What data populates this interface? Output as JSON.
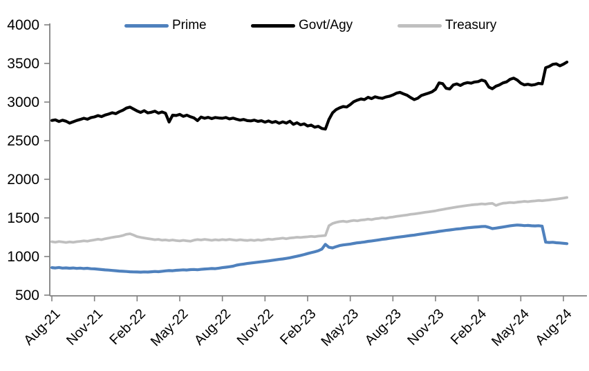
{
  "chart_data": {
    "type": "line",
    "title": "",
    "xlabel": "",
    "ylabel": "",
    "grid": false,
    "legend_position": "top",
    "axis_color": "#808080",
    "text_color": "#000000",
    "background_color": "#ffffff",
    "ylim": [
      500,
      4000
    ],
    "yticks": [
      500,
      1000,
      1500,
      2000,
      2500,
      3000,
      3500,
      4000
    ],
    "x_unit": "months since Aug-2021, weekly points",
    "x_start": 0,
    "x_step": 0.25,
    "xticks": {
      "positions_months": [
        0,
        3,
        6,
        9,
        12,
        15,
        18,
        21,
        24,
        27,
        30,
        33,
        36
      ],
      "labels": [
        "Aug-21",
        "Nov-21",
        "Feb-22",
        "May-22",
        "Aug-22",
        "Nov-22",
        "Feb-23",
        "May-23",
        "Aug-23",
        "Nov-23",
        "Feb-24",
        "May-24",
        "Aug-24"
      ]
    },
    "series": [
      {
        "name": "Prime",
        "color": "#4f81bd",
        "stroke_width": 4.2,
        "values": [
          856,
          852,
          858,
          850,
          853,
          848,
          852,
          846,
          850,
          845,
          848,
          842,
          840,
          836,
          831,
          827,
          824,
          820,
          816,
          812,
          809,
          806,
          803,
          801,
          800,
          798,
          801,
          799,
          803,
          806,
          804,
          809,
          814,
          818,
          816,
          821,
          824,
          828,
          825,
          830,
          832,
          829,
          834,
          838,
          841,
          845,
          843,
          849,
          856,
          862,
          868,
          875,
          888,
          896,
          903,
          910,
          916,
          921,
          927,
          932,
          938,
          944,
          950,
          957,
          963,
          969,
          976,
          984,
          994,
          1004,
          1014,
          1026,
          1038,
          1050,
          1062,
          1075,
          1096,
          1158,
          1120,
          1112,
          1128,
          1142,
          1150,
          1155,
          1162,
          1170,
          1178,
          1182,
          1188,
          1196,
          1202,
          1208,
          1215,
          1222,
          1228,
          1235,
          1242,
          1248,
          1254,
          1260,
          1266,
          1272,
          1278,
          1285,
          1292,
          1298,
          1305,
          1312,
          1318,
          1326,
          1332,
          1338,
          1344,
          1350,
          1356,
          1360,
          1366,
          1372,
          1376,
          1380,
          1384,
          1388,
          1390,
          1378,
          1362,
          1368,
          1375,
          1382,
          1390,
          1398,
          1404,
          1408,
          1405,
          1400,
          1403,
          1398,
          1396,
          1399,
          1394,
          1186,
          1182,
          1185,
          1179,
          1176,
          1171,
          1167
        ]
      },
      {
        "name": "Govt/Agy",
        "color": "#000000",
        "stroke_width": 4.2,
        "values": [
          2762,
          2770,
          2748,
          2765,
          2752,
          2728,
          2745,
          2762,
          2775,
          2790,
          2778,
          2798,
          2808,
          2825,
          2812,
          2832,
          2845,
          2862,
          2850,
          2875,
          2895,
          2922,
          2935,
          2910,
          2885,
          2866,
          2888,
          2860,
          2868,
          2882,
          2856,
          2872,
          2855,
          2742,
          2830,
          2826,
          2840,
          2815,
          2830,
          2810,
          2795,
          2760,
          2805,
          2790,
          2802,
          2786,
          2800,
          2794,
          2790,
          2800,
          2782,
          2792,
          2778,
          2766,
          2775,
          2760,
          2756,
          2766,
          2750,
          2758,
          2740,
          2755,
          2736,
          2748,
          2726,
          2744,
          2728,
          2752,
          2712,
          2732,
          2705,
          2718,
          2690,
          2702,
          2675,
          2686,
          2658,
          2650,
          2775,
          2860,
          2902,
          2925,
          2942,
          2936,
          2968,
          3005,
          3025,
          3040,
          3032,
          3062,
          3045,
          3068,
          3055,
          3048,
          3065,
          3075,
          3092,
          3115,
          3126,
          3105,
          3088,
          3058,
          3032,
          3050,
          3085,
          3100,
          3115,
          3132,
          3165,
          3248,
          3238,
          3178,
          3170,
          3222,
          3235,
          3215,
          3240,
          3252,
          3245,
          3260,
          3265,
          3285,
          3270,
          3195,
          3172,
          3205,
          3222,
          3248,
          3262,
          3295,
          3310,
          3285,
          3245,
          3222,
          3230,
          3220,
          3226,
          3242,
          3236,
          3445,
          3462,
          3488,
          3495,
          3470,
          3490,
          3518
        ]
      },
      {
        "name": "Treasury",
        "color": "#bfbfbf",
        "stroke_width": 3.8,
        "values": [
          1192,
          1186,
          1194,
          1188,
          1182,
          1190,
          1184,
          1192,
          1196,
          1204,
          1198,
          1208,
          1215,
          1224,
          1218,
          1230,
          1238,
          1248,
          1255,
          1262,
          1272,
          1288,
          1295,
          1278,
          1258,
          1248,
          1240,
          1232,
          1225,
          1218,
          1222,
          1212,
          1215,
          1208,
          1214,
          1206,
          1202,
          1210,
          1204,
          1198,
          1212,
          1220,
          1214,
          1222,
          1216,
          1210,
          1218,
          1212,
          1220,
          1214,
          1222,
          1215,
          1210,
          1218,
          1212,
          1208,
          1214,
          1208,
          1216,
          1210,
          1218,
          1226,
          1220,
          1228,
          1232,
          1238,
          1230,
          1240,
          1244,
          1250,
          1246,
          1252,
          1255,
          1262,
          1256,
          1264,
          1268,
          1272,
          1398,
          1428,
          1442,
          1452,
          1458,
          1450,
          1460,
          1468,
          1462,
          1472,
          1476,
          1484,
          1478,
          1488,
          1494,
          1502,
          1496,
          1506,
          1512,
          1520,
          1526,
          1532,
          1538,
          1546,
          1552,
          1558,
          1564,
          1572,
          1578,
          1585,
          1592,
          1602,
          1610,
          1618,
          1626,
          1634,
          1642,
          1648,
          1655,
          1662,
          1668,
          1672,
          1676,
          1682,
          1678,
          1685,
          1688,
          1662,
          1678,
          1690,
          1694,
          1700,
          1696,
          1704,
          1708,
          1714,
          1710,
          1716,
          1720,
          1726,
          1722,
          1728,
          1732,
          1738,
          1744,
          1750,
          1756,
          1764
        ]
      }
    ]
  }
}
